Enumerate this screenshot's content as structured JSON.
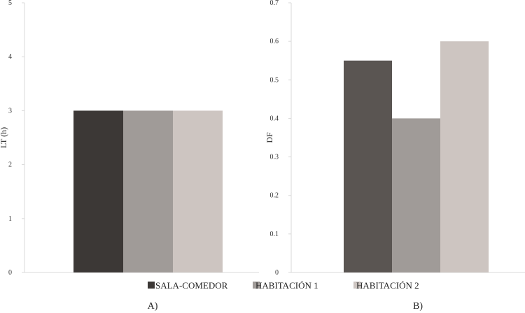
{
  "chart_data": [
    {
      "type": "bar",
      "panel_label": "A)",
      "ylabel": "LT (h)",
      "xlabel": "",
      "ylim": [
        0,
        5
      ],
      "yticks": [
        0,
        1,
        2,
        3,
        4,
        5
      ],
      "grid": false,
      "series": [
        {
          "name": "SALA-COMEDOR",
          "value": 3
        },
        {
          "name": "HABITACIÓN 1",
          "value": 3
        },
        {
          "name": "HABITACIÓN 2",
          "value": 3
        }
      ]
    },
    {
      "type": "bar",
      "panel_label": "B)",
      "ylabel": "DF",
      "xlabel": "",
      "ylim": [
        0,
        0.7
      ],
      "yticks": [
        0,
        0.1,
        0.2,
        0.3,
        0.4,
        0.5,
        0.6,
        0.7
      ],
      "grid": false,
      "series": [
        {
          "name": "SALA-COMEDOR",
          "value": 0.55
        },
        {
          "name": "HABITACIÓN 1",
          "value": 0.4
        },
        {
          "name": "HABITACIÓN 2",
          "value": 0.6
        }
      ]
    }
  ],
  "legend": {
    "placement": "bottom-center",
    "items": [
      {
        "label": "SALA-COMEDOR",
        "color": "#3c3836"
      },
      {
        "label": "HABITACIÓN 1",
        "color": "#a09b98"
      },
      {
        "label": "HABITACIÓN 2",
        "color": "#cdc5c1"
      }
    ]
  },
  "colors": {
    "SALA-COMEDOR": "#3c3836",
    "SALA-COMEDOR_B": "#5a5552",
    "HABITACIÓN 1": "#a09b98",
    "HABITACIÓN 2": "#cdc5c1"
  }
}
